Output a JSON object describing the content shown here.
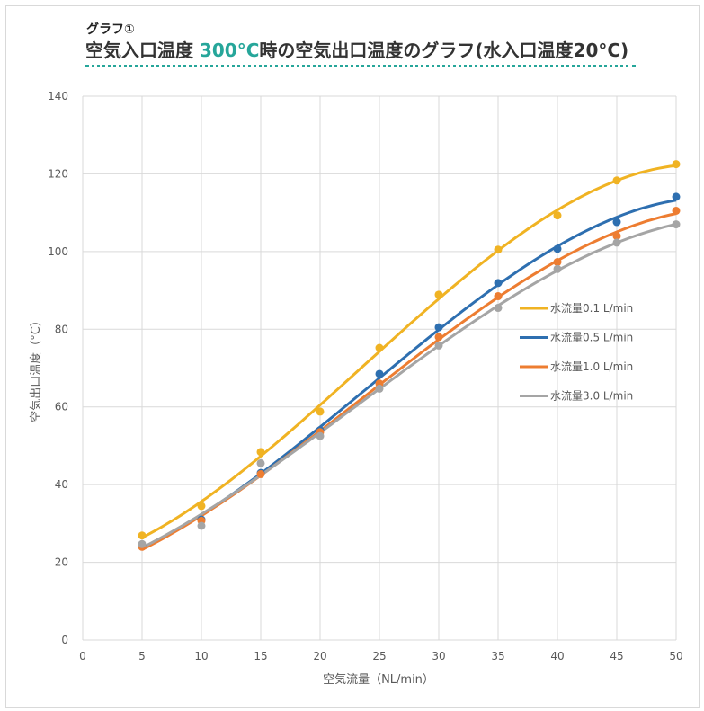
{
  "header": {
    "subtitle": "グラフ①",
    "title_pre": "空気入口温度 ",
    "title_accent": "300°C",
    "title_post": "時の空気出口温度のグラフ(水入口温度20°C)",
    "accent_color": "#26a69a"
  },
  "chart_data": {
    "type": "scatter",
    "title": "空気入口温度 300°C時の空気出口温度のグラフ(水入口温度20°C)",
    "xlabel": "空気流量（NL/min）",
    "ylabel": "空気出口温度（°C）",
    "xlim": [
      0,
      50
    ],
    "ylim": [
      0,
      140
    ],
    "xticks": [
      "0",
      "5",
      "10",
      "15",
      "20",
      "25",
      "30",
      "35",
      "40",
      "45",
      "50"
    ],
    "yticks": [
      "0",
      "20",
      "40",
      "60",
      "80",
      "100",
      "120",
      "140"
    ],
    "grid": true,
    "legend_position": "right-center",
    "x": [
      5,
      10,
      15,
      20,
      25,
      30,
      35,
      40,
      45,
      50
    ],
    "series": [
      {
        "name": "水流量0.1 L/min",
        "color": "#f0b323",
        "values": [
          26.9,
          34.5,
          48.4,
          58.8,
          75.2,
          88.9,
          100.5,
          109.3,
          118.3,
          122.5
        ]
      },
      {
        "name": "水流量0.5 L/min",
        "color": "#2e6fb0",
        "values": [
          24.5,
          31.0,
          43.0,
          54.0,
          68.5,
          80.5,
          91.9,
          100.7,
          107.6,
          114.1
        ]
      },
      {
        "name": "水流量1.0 L/min",
        "color": "#ed7d31",
        "values": [
          24.0,
          30.7,
          42.7,
          53.5,
          66.0,
          78.0,
          88.5,
          97.3,
          104.0,
          110.5
        ]
      },
      {
        "name": "水流量3.0 L/min",
        "color": "#a5a5a5",
        "values": [
          24.7,
          29.4,
          45.5,
          52.5,
          64.7,
          75.8,
          85.5,
          95.5,
          102.3,
          107.0
        ]
      }
    ]
  }
}
